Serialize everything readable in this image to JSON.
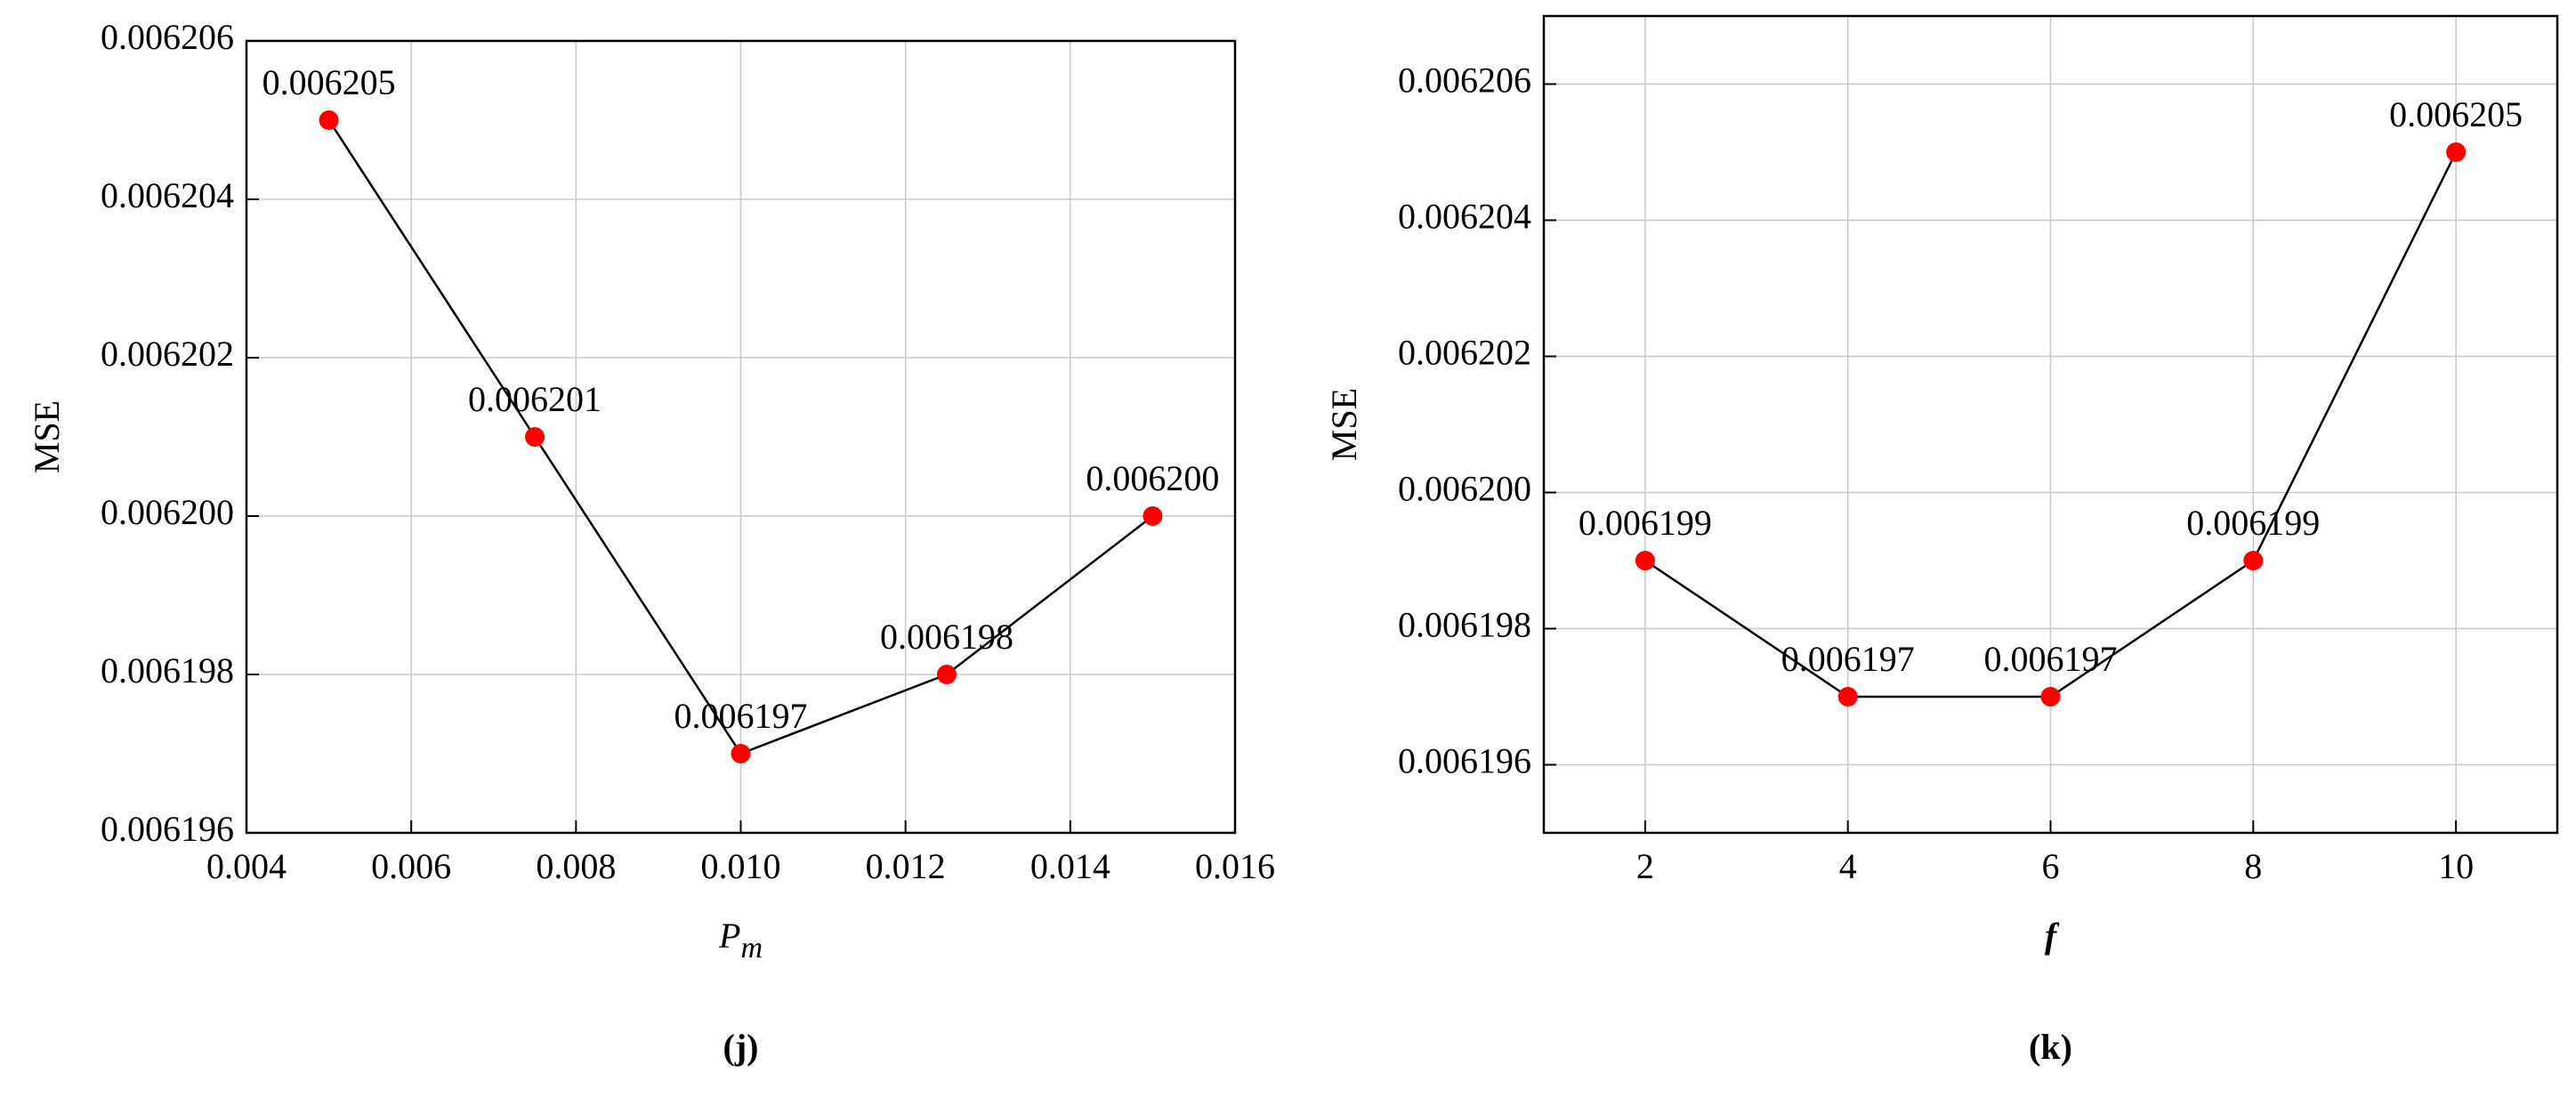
{
  "chart_data": [
    {
      "type": "line",
      "ylabel": "MSE",
      "xlabel": "P",
      "xlabel_subscript": "m",
      "panel_label": "(j)",
      "x": [
        0.005,
        0.0075,
        0.01,
        0.0125,
        0.015
      ],
      "values": [
        0.006205,
        0.006201,
        0.006197,
        0.006198,
        0.0062
      ],
      "value_labels": [
        "0.006205",
        "0.006201",
        "0.006197",
        "0.006198",
        "0.006200"
      ],
      "color": "#ff0000",
      "line_color": "#000000",
      "grid": true,
      "xlim": [
        0.004,
        0.016
      ],
      "xticks": [
        {
          "value": 0.004,
          "label": "0.004"
        },
        {
          "value": 0.006,
          "label": "0.006"
        },
        {
          "value": 0.008,
          "label": "0.008"
        },
        {
          "value": 0.01,
          "label": "0.010"
        },
        {
          "value": 0.012,
          "label": "0.012"
        },
        {
          "value": 0.014,
          "label": "0.014"
        },
        {
          "value": 0.016,
          "label": "0.016"
        }
      ],
      "ylim": [
        0.006196,
        0.006206
      ],
      "yticks": [
        {
          "value": 0.006196,
          "label": "0.006196"
        },
        {
          "value": 0.006198,
          "label": "0.006198"
        },
        {
          "value": 0.0062,
          "label": "0.006200"
        },
        {
          "value": 0.006202,
          "label": "0.006202"
        },
        {
          "value": 0.006204,
          "label": "0.006204"
        },
        {
          "value": 0.006206,
          "label": "0.006206"
        }
      ]
    },
    {
      "type": "line",
      "ylabel": "MSE",
      "xlabel": "f",
      "panel_label": "(k)",
      "x": [
        2,
        4,
        6,
        8,
        10
      ],
      "values": [
        0.006199,
        0.006197,
        0.006197,
        0.006199,
        0.006205
      ],
      "value_labels": [
        "0.006199",
        "0.006197",
        "0.006197",
        "0.006199",
        "0.006205"
      ],
      "color": "#ff0000",
      "line_color": "#000000",
      "grid": true,
      "xlim": [
        1,
        11
      ],
      "xticks": [
        2,
        4,
        6,
        8,
        10
      ],
      "ylim": [
        0.006195,
        0.006207
      ],
      "yticks": [
        {
          "value": 0.006196,
          "label": "0.006196"
        },
        {
          "value": 0.006198,
          "label": "0.006198"
        },
        {
          "value": 0.0062,
          "label": "0.006200"
        },
        {
          "value": 0.006202,
          "label": "0.006202"
        },
        {
          "value": 0.006204,
          "label": "0.006204"
        },
        {
          "value": 0.006206,
          "label": "0.006206"
        }
      ]
    }
  ]
}
